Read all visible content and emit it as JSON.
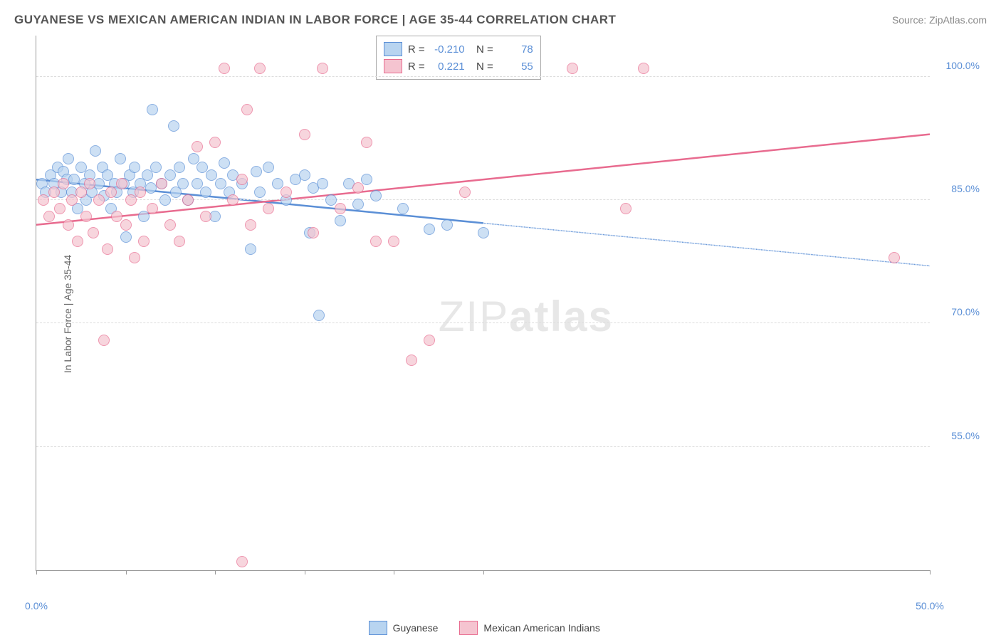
{
  "title": "GUYANESE VS MEXICAN AMERICAN INDIAN IN LABOR FORCE | AGE 35-44 CORRELATION CHART",
  "source": "Source: ZipAtlas.com",
  "ylabel": "In Labor Force | Age 35-44",
  "watermark_thin": "ZIP",
  "watermark_bold": "atlas",
  "chart": {
    "type": "scatter",
    "background_color": "#ffffff",
    "grid_color": "#dddddd",
    "axis_color": "#999999",
    "tick_label_color": "#5b8fd6",
    "label_color": "#666666",
    "xlim": [
      0,
      50
    ],
    "ylim": [
      40,
      105
    ],
    "yticks": [
      55,
      70,
      85,
      100
    ],
    "ytick_labels": [
      "55.0%",
      "70.0%",
      "85.0%",
      "100.0%"
    ],
    "xticks": [
      0,
      5,
      10,
      15,
      20,
      25,
      50
    ],
    "xtick_labels_shown": {
      "0": "0.0%",
      "50": "50.0%"
    },
    "marker_radius": 8,
    "marker_stroke_width": 1.5,
    "trend_line_width": 2.5,
    "series": [
      {
        "name": "Guyanese",
        "fill_color": "#b8d4f0",
        "stroke_color": "#5b8fd6",
        "opacity": 0.7,
        "stats": {
          "R": "-0.210",
          "N": "78"
        },
        "trend": {
          "x1": 0,
          "y1": 87.5,
          "x2": 25,
          "y2": 82.2,
          "extrap_x2": 50,
          "extrap_y2": 77.0
        },
        "points": [
          [
            0.3,
            87
          ],
          [
            0.5,
            86
          ],
          [
            0.8,
            88
          ],
          [
            1.0,
            87
          ],
          [
            1.2,
            89
          ],
          [
            1.4,
            86
          ],
          [
            1.5,
            88.5
          ],
          [
            1.7,
            87.5
          ],
          [
            1.8,
            90
          ],
          [
            2.0,
            86
          ],
          [
            2.1,
            87.5
          ],
          [
            2.3,
            84
          ],
          [
            2.5,
            89
          ],
          [
            2.7,
            87
          ],
          [
            2.8,
            85
          ],
          [
            3.0,
            88
          ],
          [
            3.1,
            86
          ],
          [
            3.3,
            91
          ],
          [
            3.5,
            87
          ],
          [
            3.7,
            89
          ],
          [
            3.8,
            85.5
          ],
          [
            4.0,
            88
          ],
          [
            4.2,
            84
          ],
          [
            4.4,
            87
          ],
          [
            4.5,
            86
          ],
          [
            4.7,
            90
          ],
          [
            4.9,
            87
          ],
          [
            5.0,
            80.5
          ],
          [
            5.2,
            88
          ],
          [
            5.4,
            86
          ],
          [
            5.5,
            89
          ],
          [
            5.8,
            87
          ],
          [
            6.0,
            83
          ],
          [
            6.2,
            88
          ],
          [
            6.4,
            86.5
          ],
          [
            6.5,
            96
          ],
          [
            6.7,
            89
          ],
          [
            7.0,
            87
          ],
          [
            7.2,
            85
          ],
          [
            7.5,
            88
          ],
          [
            7.7,
            94
          ],
          [
            7.8,
            86
          ],
          [
            8.0,
            89
          ],
          [
            8.2,
            87
          ],
          [
            8.5,
            85
          ],
          [
            8.8,
            90
          ],
          [
            9.0,
            87
          ],
          [
            9.3,
            89
          ],
          [
            9.5,
            86
          ],
          [
            9.8,
            88
          ],
          [
            10.0,
            83
          ],
          [
            10.3,
            87
          ],
          [
            10.5,
            89.5
          ],
          [
            10.8,
            86
          ],
          [
            11.0,
            88
          ],
          [
            11.5,
            87
          ],
          [
            12.0,
            79
          ],
          [
            12.3,
            88.5
          ],
          [
            12.5,
            86
          ],
          [
            13.0,
            89
          ],
          [
            13.5,
            87
          ],
          [
            14.0,
            85
          ],
          [
            14.5,
            87.5
          ],
          [
            15.0,
            88
          ],
          [
            15.3,
            81
          ],
          [
            15.5,
            86.5
          ],
          [
            15.8,
            71
          ],
          [
            16.0,
            87
          ],
          [
            16.5,
            85
          ],
          [
            17.0,
            82.5
          ],
          [
            17.5,
            87
          ],
          [
            18.0,
            84.5
          ],
          [
            18.5,
            87.5
          ],
          [
            19.0,
            85.5
          ],
          [
            20.5,
            84
          ],
          [
            22.0,
            81.5
          ],
          [
            23.0,
            82
          ],
          [
            25.0,
            81
          ]
        ]
      },
      {
        "name": "Mexican American Indians",
        "fill_color": "#f5c4d0",
        "stroke_color": "#e86b8f",
        "opacity": 0.7,
        "stats": {
          "R": "0.221",
          "N": "55"
        },
        "trend": {
          "x1": 0,
          "y1": 82.0,
          "x2": 50,
          "y2": 93.0,
          "extrap_x2": 50,
          "extrap_y2": 93.0
        },
        "points": [
          [
            0.4,
            85
          ],
          [
            0.7,
            83
          ],
          [
            1.0,
            86
          ],
          [
            1.3,
            84
          ],
          [
            1.5,
            87
          ],
          [
            1.8,
            82
          ],
          [
            2.0,
            85
          ],
          [
            2.3,
            80
          ],
          [
            2.5,
            86
          ],
          [
            2.8,
            83
          ],
          [
            3.0,
            87
          ],
          [
            3.2,
            81
          ],
          [
            3.5,
            85
          ],
          [
            3.8,
            68
          ],
          [
            4.0,
            79
          ],
          [
            4.2,
            86
          ],
          [
            4.5,
            83
          ],
          [
            4.8,
            87
          ],
          [
            5.0,
            82
          ],
          [
            5.3,
            85
          ],
          [
            5.5,
            78
          ],
          [
            5.8,
            86
          ],
          [
            6.0,
            80
          ],
          [
            6.5,
            84
          ],
          [
            7.0,
            87
          ],
          [
            7.5,
            82
          ],
          [
            8.0,
            80
          ],
          [
            8.5,
            85
          ],
          [
            9.0,
            91.5
          ],
          [
            9.5,
            83
          ],
          [
            10.0,
            92
          ],
          [
            10.5,
            101
          ],
          [
            11.0,
            85
          ],
          [
            11.5,
            87.5
          ],
          [
            11.8,
            96
          ],
          [
            12.0,
            82
          ],
          [
            12.5,
            101
          ],
          [
            13.0,
            84
          ],
          [
            14.0,
            86
          ],
          [
            15.0,
            93
          ],
          [
            15.5,
            81
          ],
          [
            16.0,
            101
          ],
          [
            17.0,
            84
          ],
          [
            18.0,
            86.5
          ],
          [
            18.5,
            92
          ],
          [
            19.0,
            80
          ],
          [
            20.0,
            80
          ],
          [
            21.0,
            65.5
          ],
          [
            22.0,
            68
          ],
          [
            24.0,
            86
          ],
          [
            30.0,
            101
          ],
          [
            33.0,
            84
          ],
          [
            34.0,
            101
          ],
          [
            48.0,
            78
          ],
          [
            11.5,
            41
          ]
        ]
      }
    ]
  },
  "bottom_legend": [
    {
      "label": "Guyanese",
      "fill": "#b8d4f0",
      "stroke": "#5b8fd6"
    },
    {
      "label": "Mexican American Indians",
      "fill": "#f5c4d0",
      "stroke": "#e86b8f"
    }
  ]
}
